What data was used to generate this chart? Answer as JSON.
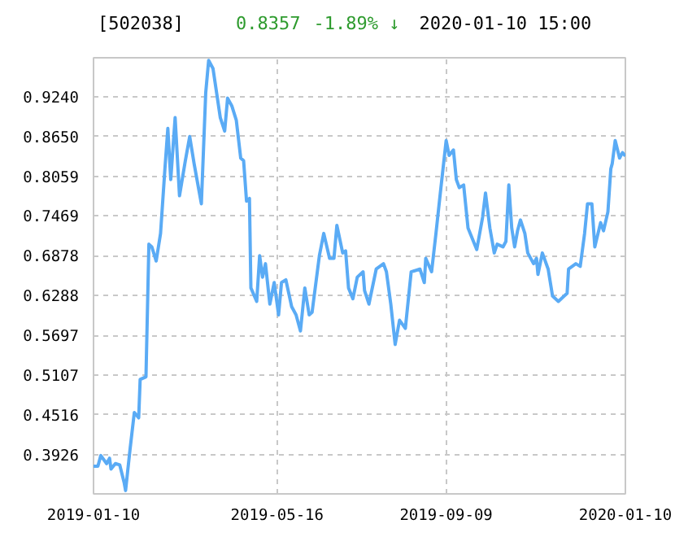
{
  "chart_data": {
    "type": "line",
    "title": "[502038]",
    "annotations": [
      "0.8357",
      "-1.89% ↓",
      "2020-01-10 15:00"
    ],
    "x": [
      "2019-01-10",
      "2019-01-13",
      "2019-01-15",
      "2019-01-19",
      "2019-01-21",
      "2019-01-22",
      "2019-01-25",
      "2019-01-28",
      "2019-01-31",
      "2019-02-01",
      "2019-02-04",
      "2019-02-07",
      "2019-02-10",
      "2019-02-11",
      "2019-02-15",
      "2019-02-17",
      "2019-02-19",
      "2019-02-22",
      "2019-02-25",
      "2019-02-28",
      "2019-03-02",
      "2019-03-04",
      "2019-03-07",
      "2019-03-10",
      "2019-03-14",
      "2019-03-17",
      "2019-03-20",
      "2019-03-23",
      "2019-03-25",
      "2019-03-28",
      "2019-03-30",
      "2019-04-02",
      "2019-04-07",
      "2019-04-10",
      "2019-04-12",
      "2019-04-15",
      "2019-04-18",
      "2019-04-21",
      "2019-04-23",
      "2019-04-25",
      "2019-04-27",
      "2019-04-28",
      "2019-05-02",
      "2019-05-04",
      "2019-05-06",
      "2019-05-08",
      "2019-05-11",
      "2019-05-14",
      "2019-05-17",
      "2019-05-19",
      "2019-05-22",
      "2019-05-26",
      "2019-05-29",
      "2019-06-01",
      "2019-06-04",
      "2019-06-07",
      "2019-06-09",
      "2019-06-14",
      "2019-06-17",
      "2019-06-21",
      "2019-06-24",
      "2019-06-26",
      "2019-06-30",
      "2019-07-02",
      "2019-07-04",
      "2019-07-07",
      "2019-07-10",
      "2019-07-14",
      "2019-07-15",
      "2019-07-18",
      "2019-07-23",
      "2019-07-28",
      "2019-07-30",
      "2019-08-02",
      "2019-08-05",
      "2019-08-08",
      "2019-08-12",
      "2019-08-16",
      "2019-08-22",
      "2019-08-25",
      "2019-08-26",
      "2019-08-30",
      "2019-09-02",
      "2019-09-05",
      "2019-09-09",
      "2019-09-11",
      "2019-09-14",
      "2019-09-16",
      "2019-09-18",
      "2019-09-21",
      "2019-09-24",
      "2019-09-27",
      "2019-09-30",
      "2019-10-04",
      "2019-10-06",
      "2019-10-09",
      "2019-10-12",
      "2019-10-14",
      "2019-10-18",
      "2019-10-20",
      "2019-10-22",
      "2019-10-24",
      "2019-10-26",
      "2019-10-28",
      "2019-10-30",
      "2019-11-02",
      "2019-11-04",
      "2019-11-08",
      "2019-11-10",
      "2019-11-11",
      "2019-11-14",
      "2019-11-18",
      "2019-11-21",
      "2019-11-25",
      "2019-11-29",
      "2019-12-01",
      "2019-12-02",
      "2019-12-07",
      "2019-12-10",
      "2019-12-13",
      "2019-12-15",
      "2019-12-18",
      "2019-12-20",
      "2019-12-24",
      "2019-12-26",
      "2019-12-29",
      "2019-12-31",
      "2020-01-01",
      "2020-01-03",
      "2020-01-06",
      "2020-01-08",
      "2020-01-10"
    ],
    "series": [
      {
        "color": "#5aabf5",
        "values": [
          0.375,
          0.375,
          0.391,
          0.379,
          0.387,
          0.371,
          0.379,
          0.377,
          0.351,
          0.339,
          0.399,
          0.455,
          0.447,
          0.504,
          0.508,
          0.705,
          0.701,
          0.68,
          0.721,
          0.817,
          0.877,
          0.801,
          0.893,
          0.777,
          0.829,
          0.865,
          0.825,
          0.789,
          0.765,
          0.93,
          0.978,
          0.966,
          0.893,
          0.873,
          0.922,
          0.91,
          0.889,
          0.833,
          0.829,
          0.769,
          0.773,
          0.64,
          0.62,
          0.688,
          0.656,
          0.676,
          0.616,
          0.648,
          0.6,
          0.648,
          0.652,
          0.612,
          0.6,
          0.576,
          0.64,
          0.6,
          0.604,
          0.688,
          0.721,
          0.684,
          0.684,
          0.733,
          0.692,
          0.695,
          0.64,
          0.624,
          0.656,
          0.664,
          0.636,
          0.616,
          0.668,
          0.676,
          0.664,
          0.616,
          0.556,
          0.592,
          0.58,
          0.664,
          0.668,
          0.648,
          0.684,
          0.664,
          0.721,
          0.781,
          0.859,
          0.837,
          0.845,
          0.801,
          0.789,
          0.793,
          0.729,
          0.713,
          0.697,
          0.745,
          0.781,
          0.729,
          0.692,
          0.705,
          0.701,
          0.709,
          0.793,
          0.729,
          0.701,
          0.725,
          0.741,
          0.721,
          0.692,
          0.676,
          0.684,
          0.66,
          0.692,
          0.668,
          0.628,
          0.62,
          0.628,
          0.632,
          0.668,
          0.676,
          0.672,
          0.721,
          0.765,
          0.765,
          0.701,
          0.737,
          0.725,
          0.753,
          0.817,
          0.825,
          0.859,
          0.833,
          0.841,
          0.836
        ]
      }
    ],
    "xlim": [
      "2019-01-10",
      "2020-01-10"
    ],
    "xticks": [
      {
        "value": "2019-01-10",
        "label": "2019-01-10"
      },
      {
        "value": "2019-05-16",
        "label": "2019-05-16"
      },
      {
        "value": "2019-09-09",
        "label": "2019-09-09"
      },
      {
        "value": "2020-01-10",
        "label": "2020-01-10"
      }
    ],
    "ylim": [
      0.334,
      0.982
    ],
    "yticks": [
      0.3926,
      0.4516,
      0.5107,
      0.5697,
      0.6288,
      0.6878,
      0.7469,
      0.8059,
      {
        "value": 0.865,
        "label": "0.8650"
      },
      {
        "value": 0.924,
        "label": "0.9240"
      }
    ],
    "grid": true,
    "marker": "none",
    "line_style": "solid"
  }
}
